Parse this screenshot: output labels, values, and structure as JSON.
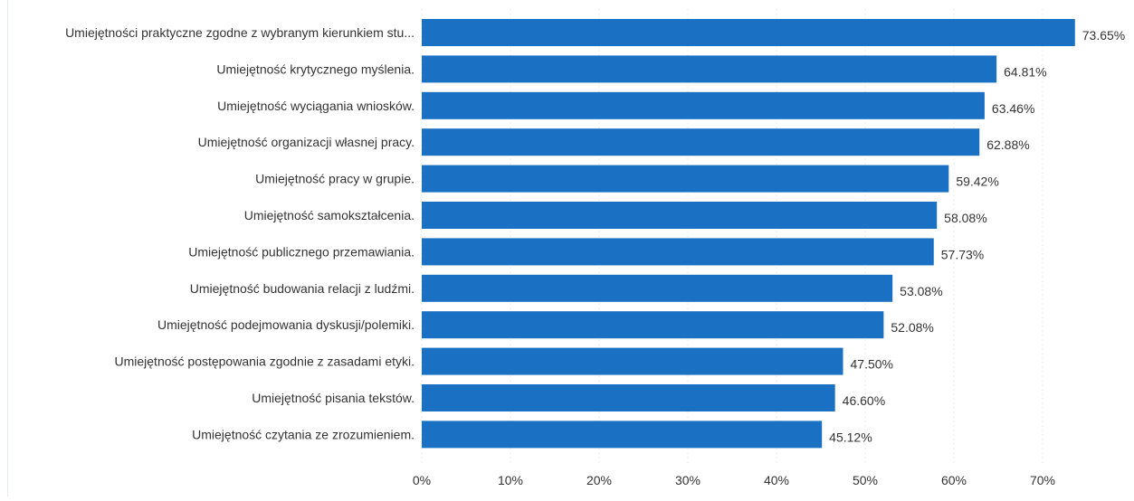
{
  "chart_data": {
    "type": "bar",
    "orientation": "horizontal",
    "categories": [
      "Umiejętności praktyczne zgodne z wybranym kierunkiem stu...",
      "Umiejętność krytycznego myślenia.",
      "Umiejętność wyciągania wniosków.",
      "Umiejętność organizacji własnej pracy.",
      "Umiejętność pracy w grupie.",
      "Umiejętność samokształcenia.",
      "Umiejętność publicznego przemawiania.",
      "Umiejętność budowania relacji z ludźmi.",
      "Umiejętność podejmowania dyskusji/polemiki.",
      "Umiejętność postępowania zgodnie z zasadami etyki.",
      "Umiejętność pisania tekstów.",
      "Umiejętność czytania ze zrozumieniem."
    ],
    "values": [
      73.65,
      64.81,
      63.46,
      62.88,
      59.42,
      58.08,
      57.73,
      53.08,
      52.08,
      47.5,
      46.6,
      45.12
    ],
    "data_labels": [
      "73.65%",
      "64.81%",
      "63.46%",
      "62.88%",
      "59.42%",
      "58.08%",
      "57.73%",
      "53.08%",
      "52.08%",
      "47.50%",
      "46.60%",
      "45.12%"
    ],
    "x_ticks": [
      "0%",
      "10%",
      "20%",
      "30%",
      "40%",
      "50%",
      "60%",
      "70%"
    ],
    "xlim": [
      0,
      75
    ],
    "grid": true,
    "legend": "none",
    "bar_color": "#1a70c3"
  }
}
